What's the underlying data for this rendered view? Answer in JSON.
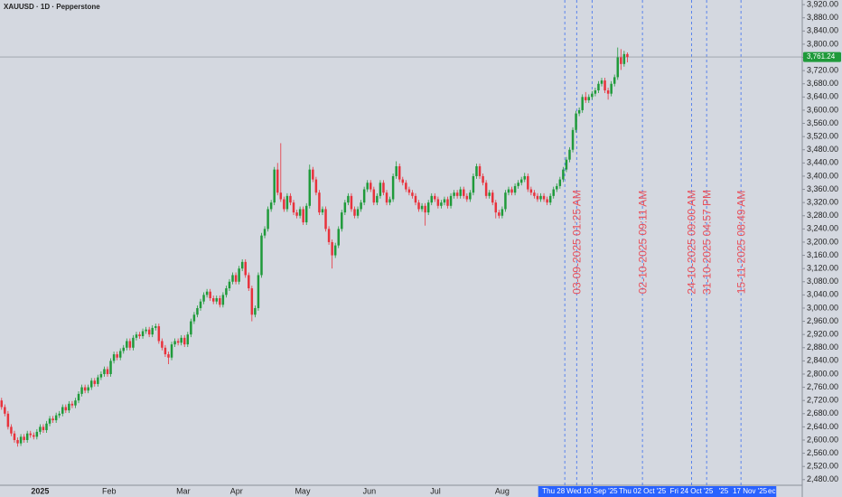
{
  "chart_data": {
    "type": "candlestick",
    "title": "XAUUSD · 1D · Pepperstone",
    "up_color": "#1f9a3a",
    "down_color": "#e8323c",
    "open": [
      2720,
      2700,
      2680,
      2640,
      2620,
      2600,
      2590,
      2610,
      2600,
      2620,
      2615,
      2610,
      2625,
      2640,
      2630,
      2650,
      2665,
      2660,
      2675,
      2680,
      2700,
      2690,
      2710,
      2705,
      2720,
      2740,
      2760,
      2750,
      2760,
      2780,
      2770,
      2790,
      2800,
      2815,
      2800,
      2840,
      2860,
      2850,
      2870,
      2880,
      2900,
      2880,
      2910,
      2920,
      2915,
      2930,
      2935,
      2920,
      2940,
      2945,
      2900,
      2880,
      2860,
      2850,
      2890,
      2900,
      2895,
      2910,
      2890,
      2920,
      2960,
      2980,
      3000,
      3020,
      3040,
      3050,
      3030,
      3020,
      3030,
      3010,
      3040,
      3060,
      3080,
      3100,
      3080,
      3120,
      3140,
      3100,
      3060,
      2980,
      3000,
      3100,
      3220,
      3240,
      3300,
      3320,
      3420,
      3350,
      3330,
      3300,
      3340,
      3320,
      3290,
      3280,
      3300,
      3260,
      3310,
      3420,
      3390,
      3350,
      3290,
      3300,
      3240,
      3200,
      3160,
      3190,
      3240,
      3290,
      3320,
      3340,
      3300,
      3280,
      3300,
      3320,
      3360,
      3380,
      3360,
      3320,
      3340,
      3380,
      3350,
      3320,
      3330,
      3400,
      3430,
      3390,
      3380,
      3360,
      3350,
      3340,
      3320,
      3300,
      3310,
      3290,
      3320,
      3340,
      3330,
      3310,
      3320,
      3330,
      3310,
      3340,
      3350,
      3340,
      3360,
      3340,
      3330,
      3350,
      3400,
      3430,
      3400,
      3380,
      3340,
      3350,
      3320,
      3290,
      3280,
      3300,
      3350,
      3360,
      3350,
      3370,
      3380,
      3390,
      3400,
      3360,
      3350,
      3340,
      3330,
      3340,
      3330,
      3320,
      3340,
      3360,
      3370,
      3390,
      3420,
      3450,
      3480,
      3540,
      3590,
      3600,
      3640,
      3630,
      3640,
      3650,
      3660,
      3680,
      3690,
      3660,
      3650,
      3680,
      3700,
      3760,
      3740,
      3770
    ],
    "high": [
      2728,
      2708,
      2688,
      2648,
      2628,
      2608,
      2618,
      2618,
      2628,
      2628,
      2623,
      2633,
      2648,
      2648,
      2658,
      2673,
      2673,
      2683,
      2688,
      2708,
      2708,
      2718,
      2718,
      2728,
      2748,
      2768,
      2768,
      2768,
      2788,
      2788,
      2798,
      2808,
      2823,
      2823,
      2848,
      2868,
      2868,
      2878,
      2888,
      2908,
      2908,
      2918,
      2928,
      2928,
      2938,
      2943,
      2943,
      2948,
      2953,
      2953,
      2908,
      2888,
      2868,
      2898,
      2908,
      2908,
      2918,
      2918,
      2928,
      2968,
      2988,
      3008,
      3028,
      3048,
      3058,
      3058,
      3038,
      3038,
      3038,
      3048,
      3068,
      3088,
      3108,
      3108,
      3128,
      3148,
      3148,
      3108,
      3068,
      3008,
      3108,
      3228,
      3248,
      3308,
      3328,
      3428,
      3440,
      3500,
      3338,
      3348,
      3348,
      3328,
      3298,
      3308,
      3308,
      3318,
      3435,
      3428,
      3398,
      3358,
      3308,
      3308,
      3248,
      3208,
      3198,
      3248,
      3298,
      3328,
      3348,
      3348,
      3308,
      3308,
      3328,
      3368,
      3388,
      3388,
      3368,
      3348,
      3388,
      3388,
      3358,
      3338,
      3408,
      3445,
      3438,
      3398,
      3388,
      3368,
      3358,
      3348,
      3328,
      3318,
      3318,
      3328,
      3348,
      3348,
      3338,
      3328,
      3338,
      3338,
      3348,
      3358,
      3358,
      3368,
      3368,
      3348,
      3358,
      3408,
      3438,
      3438,
      3408,
      3388,
      3358,
      3358,
      3328,
      3298,
      3308,
      3358,
      3368,
      3368,
      3378,
      3388,
      3398,
      3410,
      3408,
      3368,
      3358,
      3348,
      3348,
      3348,
      3338,
      3348,
      3368,
      3378,
      3398,
      3428,
      3458,
      3488,
      3548,
      3598,
      3608,
      3648,
      3655,
      3648,
      3658,
      3668,
      3688,
      3698,
      3698,
      3668,
      3688,
      3708,
      3790,
      3785,
      3780,
      3775
    ],
    "low": [
      2692,
      2672,
      2632,
      2612,
      2592,
      2580,
      2582,
      2592,
      2592,
      2607,
      2602,
      2602,
      2617,
      2622,
      2622,
      2642,
      2652,
      2652,
      2667,
      2672,
      2682,
      2682,
      2697,
      2697,
      2712,
      2732,
      2742,
      2742,
      2752,
      2762,
      2762,
      2782,
      2792,
      2792,
      2792,
      2832,
      2842,
      2842,
      2862,
      2872,
      2872,
      2872,
      2902,
      2907,
      2907,
      2922,
      2912,
      2912,
      2932,
      2892,
      2872,
      2852,
      2830,
      2842,
      2882,
      2887,
      2887,
      2882,
      2882,
      2912,
      2952,
      2972,
      2992,
      3012,
      3032,
      3022,
      3012,
      3012,
      3002,
      3002,
      3032,
      3052,
      3072,
      3072,
      3072,
      3112,
      3092,
      3052,
      2960,
      2972,
      2992,
      3092,
      3212,
      3232,
      3292,
      3312,
      3342,
      3322,
      3292,
      3292,
      3312,
      3282,
      3272,
      3272,
      3252,
      3252,
      3302,
      3382,
      3342,
      3282,
      3282,
      3232,
      3192,
      3120,
      3152,
      3182,
      3232,
      3282,
      3312,
      3292,
      3272,
      3272,
      3292,
      3312,
      3352,
      3352,
      3312,
      3312,
      3332,
      3342,
      3312,
      3312,
      3322,
      3392,
      3382,
      3372,
      3352,
      3342,
      3332,
      3312,
      3292,
      3292,
      3250,
      3282,
      3312,
      3322,
      3302,
      3302,
      3312,
      3302,
      3302,
      3332,
      3332,
      3332,
      3332,
      3322,
      3322,
      3342,
      3392,
      3392,
      3372,
      3332,
      3332,
      3312,
      3272,
      3272,
      3272,
      3292,
      3342,
      3342,
      3342,
      3362,
      3372,
      3382,
      3352,
      3342,
      3332,
      3322,
      3322,
      3322,
      3312,
      3312,
      3332,
      3352,
      3362,
      3382,
      3412,
      3442,
      3472,
      3532,
      3582,
      3592,
      3622,
      3622,
      3632,
      3642,
      3652,
      3672,
      3652,
      3632,
      3642,
      3672,
      3692,
      3722,
      3732,
      3745
    ],
    "close": [
      2700,
      2680,
      2640,
      2620,
      2600,
      2590,
      2610,
      2600,
      2620,
      2615,
      2610,
      2625,
      2640,
      2630,
      2650,
      2665,
      2660,
      2675,
      2680,
      2700,
      2690,
      2710,
      2705,
      2720,
      2740,
      2760,
      2750,
      2760,
      2780,
      2770,
      2790,
      2800,
      2815,
      2800,
      2840,
      2860,
      2850,
      2870,
      2880,
      2900,
      2880,
      2910,
      2920,
      2915,
      2930,
      2935,
      2920,
      2940,
      2945,
      2900,
      2880,
      2860,
      2850,
      2890,
      2900,
      2895,
      2910,
      2890,
      2920,
      2960,
      2980,
      3000,
      3020,
      3040,
      3050,
      3030,
      3020,
      3030,
      3010,
      3040,
      3060,
      3080,
      3100,
      3080,
      3120,
      3140,
      3100,
      3060,
      2980,
      3000,
      3100,
      3220,
      3240,
      3300,
      3320,
      3420,
      3350,
      3330,
      3300,
      3340,
      3320,
      3290,
      3280,
      3300,
      3260,
      3310,
      3420,
      3390,
      3350,
      3290,
      3300,
      3240,
      3200,
      3160,
      3190,
      3240,
      3290,
      3320,
      3340,
      3300,
      3280,
      3300,
      3320,
      3360,
      3380,
      3360,
      3320,
      3340,
      3380,
      3350,
      3320,
      3330,
      3400,
      3430,
      3390,
      3380,
      3360,
      3350,
      3340,
      3320,
      3300,
      3310,
      3290,
      3320,
      3340,
      3330,
      3310,
      3320,
      3330,
      3310,
      3340,
      3350,
      3340,
      3360,
      3340,
      3330,
      3350,
      3400,
      3430,
      3400,
      3380,
      3340,
      3350,
      3320,
      3290,
      3280,
      3300,
      3350,
      3360,
      3350,
      3370,
      3380,
      3390,
      3400,
      3360,
      3350,
      3340,
      3330,
      3340,
      3330,
      3320,
      3340,
      3360,
      3370,
      3390,
      3420,
      3450,
      3480,
      3540,
      3590,
      3600,
      3640,
      3630,
      3640,
      3650,
      3660,
      3680,
      3690,
      3660,
      3650,
      3680,
      3700,
      3760,
      3740,
      3770,
      3761.24
    ],
    "xlim": [
      -0.5,
      249.5
    ],
    "xticks": [
      {
        "value": 12,
        "label": "2025"
      },
      {
        "value": 33.5,
        "label": "Feb"
      },
      {
        "value": 56.6,
        "label": "Mar"
      },
      {
        "value": 73.2,
        "label": "Apr"
      },
      {
        "value": 93.8,
        "label": "May"
      },
      {
        "value": 114.6,
        "label": "Jun"
      },
      {
        "value": 135.2,
        "label": "Jul"
      },
      {
        "value": 156,
        "label": "Aug"
      }
    ],
    "time_labels": [
      {
        "value": 172,
        "label": "Thu 28"
      },
      {
        "value": 184,
        "label": "Wed 10 Sep '25"
      },
      {
        "value": 199.7,
        "label": "Thu 02 Oct '25"
      },
      {
        "value": 215,
        "label": "Fri 24 Oct '25"
      },
      {
        "value": 225,
        "label": "'25"
      },
      {
        "value": 233.2,
        "label": "17 Nov '25"
      },
      {
        "value": 240,
        "label": "ec"
      }
    ],
    "ylim": [
      2463,
      3934
    ],
    "yticks": [
      {
        "value": 2480,
        "label": "2,480.00"
      },
      {
        "value": 2520,
        "label": "2,520.00"
      },
      {
        "value": 2560,
        "label": "2,560.00"
      },
      {
        "value": 2600,
        "label": "2,600.00"
      },
      {
        "value": 2640,
        "label": "2,640.00"
      },
      {
        "value": 2680,
        "label": "2,680.00"
      },
      {
        "value": 2720,
        "label": "2,720.00"
      },
      {
        "value": 2760,
        "label": "2,760.00"
      },
      {
        "value": 2800,
        "label": "2,800.00"
      },
      {
        "value": 2840,
        "label": "2,840.00"
      },
      {
        "value": 2880,
        "label": "2,880.00"
      },
      {
        "value": 2920,
        "label": "2,920.00"
      },
      {
        "value": 2960,
        "label": "2,960.00"
      },
      {
        "value": 3000,
        "label": "3,000.00"
      },
      {
        "value": 3040,
        "label": "3,040.00"
      },
      {
        "value": 3080,
        "label": "3,080.00"
      },
      {
        "value": 3120,
        "label": "3,120.00"
      },
      {
        "value": 3160,
        "label": "3,160.00"
      },
      {
        "value": 3200,
        "label": "3,200.00"
      },
      {
        "value": 3240,
        "label": "3,240.00"
      },
      {
        "value": 3280,
        "label": "3,280.00"
      },
      {
        "value": 3320,
        "label": "3,320.00"
      },
      {
        "value": 3360,
        "label": "3,360.00"
      },
      {
        "value": 3400,
        "label": "3,400.00"
      },
      {
        "value": 3440,
        "label": "3,440.00"
      },
      {
        "value": 3480,
        "label": "3,480.00"
      },
      {
        "value": 3520,
        "label": "3,520.00"
      },
      {
        "value": 3560,
        "label": "3,560.00"
      },
      {
        "value": 3600,
        "label": "3,600.00"
      },
      {
        "value": 3640,
        "label": "3,640.00"
      },
      {
        "value": 3680,
        "label": "3,680.00"
      },
      {
        "value": 3720,
        "label": "3,720.00"
      },
      {
        "value": 3760,
        "label": "3,760.00"
      },
      {
        "value": 3800,
        "label": "3,800.00"
      },
      {
        "value": 3840,
        "label": "3,840.00"
      },
      {
        "value": 3880,
        "label": "3,880.00"
      },
      {
        "value": 3920,
        "label": "3,920.00"
      }
    ],
    "last_price": {
      "value": 3761.24,
      "label": "3,761.24"
    },
    "markers": [
      175.5,
      184
    ],
    "events": [
      {
        "x": 179.2,
        "label": "03-09-2025 01:25 AM"
      },
      {
        "x": 199.7,
        "label": "02-10-2025 09:11 AM"
      },
      {
        "x": 215,
        "label": "24-10-2025 09:00 AM"
      },
      {
        "x": 219.7,
        "label": "31-10-2025 04:57 PM"
      },
      {
        "x": 230.4,
        "label": "15-11-2025 08:49 AM"
      }
    ]
  }
}
